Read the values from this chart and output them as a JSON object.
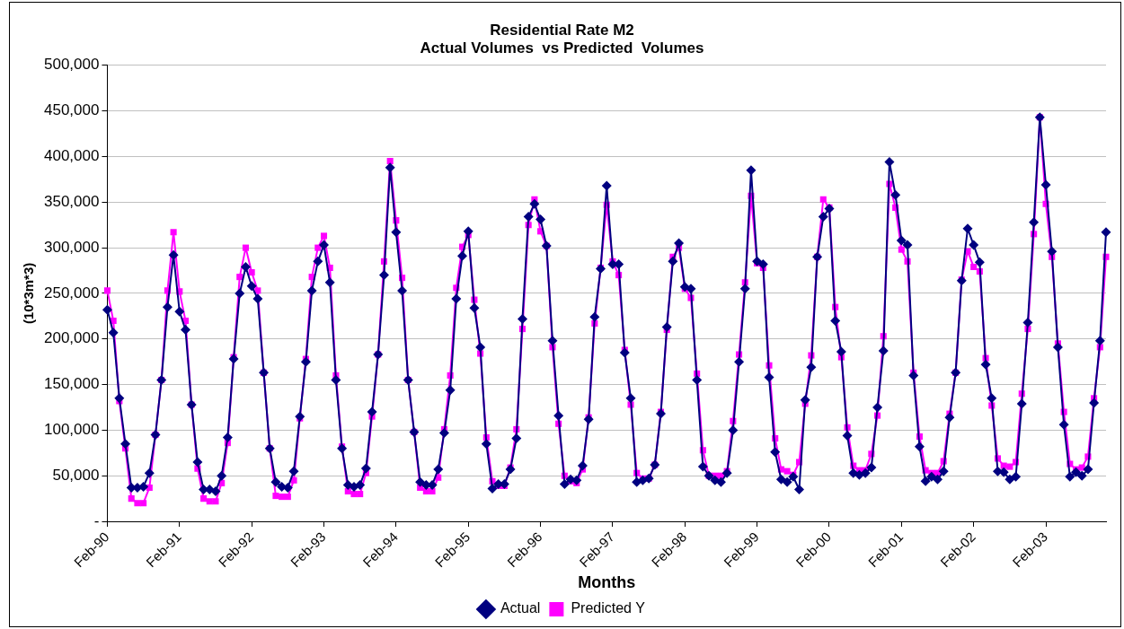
{
  "chart_data": {
    "type": "line",
    "title": "Residential Rate M2",
    "subtitle": "Actual Volumes  vs Predicted  Volumes",
    "xlabel": "Months",
    "ylabel": "(10*3m*3)",
    "categories": [
      "Feb-90",
      null,
      null,
      null,
      null,
      null,
      null,
      null,
      null,
      null,
      null,
      null,
      "Feb-91",
      null,
      null,
      null,
      null,
      null,
      null,
      null,
      null,
      null,
      null,
      null,
      "Feb-92",
      null,
      null,
      null,
      null,
      null,
      null,
      null,
      null,
      null,
      null,
      null,
      "Feb-93",
      null,
      null,
      null,
      null,
      null,
      null,
      null,
      null,
      null,
      null,
      null,
      "Feb-94",
      null,
      null,
      null,
      null,
      null,
      null,
      null,
      null,
      null,
      null,
      null,
      "Feb-95",
      null,
      null,
      null,
      null,
      null,
      null,
      null,
      null,
      null,
      null,
      null,
      "Feb-96",
      null,
      null,
      null,
      null,
      null,
      null,
      null,
      null,
      null,
      null,
      null,
      "Feb-97",
      null,
      null,
      null,
      null,
      null,
      null,
      null,
      null,
      null,
      null,
      null,
      "Feb-98",
      null,
      null,
      null,
      null,
      null,
      null,
      null,
      null,
      null,
      null,
      null,
      "Feb-99",
      null,
      null,
      null,
      null,
      null,
      null,
      null,
      null,
      null,
      null,
      null,
      "Feb-00",
      null,
      null,
      null,
      null,
      null,
      null,
      null,
      null,
      null,
      null,
      null,
      "Feb-01",
      null,
      null,
      null,
      null,
      null,
      null,
      null,
      null,
      null,
      null,
      null,
      "Feb-02",
      null,
      null,
      null,
      null,
      null,
      null,
      null,
      null,
      null,
      null,
      null,
      "Feb-03",
      null,
      null,
      null,
      null,
      null,
      null,
      null,
      null,
      null,
      null
    ],
    "series": [
      {
        "name": "Actual",
        "color": "#000080",
        "marker": "diamond",
        "values": [
          232000,
          207000,
          135000,
          85000,
          37000,
          37000,
          38000,
          53000,
          95000,
          155000,
          235000,
          292000,
          230000,
          210000,
          128000,
          65000,
          35000,
          35000,
          33000,
          50000,
          92000,
          178000,
          250000,
          279000,
          258000,
          244000,
          163000,
          80000,
          43000,
          38000,
          37000,
          55000,
          115000,
          175000,
          253000,
          285000,
          303000,
          262000,
          155000,
          80000,
          40000,
          38000,
          40000,
          58000,
          120000,
          183000,
          270000,
          388000,
          317000,
          253000,
          155000,
          98000,
          43000,
          40000,
          40000,
          57000,
          97000,
          144000,
          244000,
          291000,
          318000,
          234000,
          191000,
          85000,
          36000,
          41000,
          41000,
          57000,
          91000,
          222000,
          334000,
          348000,
          331000,
          302000,
          198000,
          116000,
          41000,
          46000,
          45000,
          61000,
          112000,
          224000,
          277000,
          368000,
          282000,
          282000,
          185000,
          135000,
          43000,
          45000,
          47000,
          62000,
          118000,
          213000,
          285000,
          305000,
          257000,
          255000,
          155000,
          60000,
          50000,
          45000,
          43000,
          53000,
          100000,
          175000,
          255000,
          385000,
          285000,
          282000,
          158000,
          76000,
          46000,
          43000,
          49000,
          35000,
          133000,
          169000,
          290000,
          334000,
          343000,
          220000,
          186000,
          94000,
          53000,
          51000,
          53000,
          59000,
          125000,
          187000,
          394000,
          358000,
          308000,
          303000,
          160000,
          82000,
          44000,
          49000,
          46000,
          55000,
          114000,
          163000,
          264000,
          321000,
          303000,
          284000,
          172000,
          135000,
          55000,
          54000,
          46000,
          49000,
          129000,
          218000,
          328000,
          443000,
          369000,
          296000,
          191000,
          106000,
          49000,
          54000,
          50000,
          57000,
          130000,
          198000,
          317000
        ]
      },
      {
        "name": "Predicted Y",
        "color": "#ff00ff",
        "marker": "square",
        "values": [
          253000,
          220000,
          132000,
          80000,
          25000,
          20000,
          20000,
          37000,
          95000,
          155000,
          253000,
          317000,
          252000,
          220000,
          128000,
          58000,
          25000,
          22000,
          22000,
          42000,
          86000,
          180000,
          268000,
          300000,
          273000,
          253000,
          163000,
          80000,
          28000,
          27000,
          27000,
          45000,
          113000,
          178000,
          268000,
          300000,
          313000,
          278000,
          160000,
          82000,
          33000,
          30000,
          30000,
          53000,
          115000,
          183000,
          285000,
          395000,
          330000,
          267000,
          155000,
          98000,
          37000,
          33000,
          33000,
          48000,
          101000,
          160000,
          256000,
          301000,
          314000,
          243000,
          184000,
          92000,
          44000,
          39000,
          39000,
          59000,
          101000,
          211000,
          325000,
          353000,
          318000,
          302000,
          191000,
          107000,
          50000,
          44000,
          42000,
          57000,
          114000,
          217000,
          278000,
          347000,
          285000,
          270000,
          188000,
          128000,
          53000,
          47000,
          47000,
          62000,
          120000,
          210000,
          290000,
          300000,
          255000,
          245000,
          162000,
          78000,
          50000,
          50000,
          50000,
          55000,
          110000,
          183000,
          262000,
          357000,
          283000,
          278000,
          171000,
          91000,
          57000,
          55000,
          51000,
          65000,
          129000,
          182000,
          290000,
          353000,
          344000,
          235000,
          180000,
          103000,
          61000,
          56000,
          56000,
          74000,
          116000,
          203000,
          370000,
          344000,
          298000,
          285000,
          163000,
          93000,
          56000,
          53000,
          53000,
          66000,
          118000,
          163000,
          265000,
          296000,
          279000,
          274000,
          179000,
          127000,
          69000,
          61000,
          60000,
          65000,
          140000,
          211000,
          315000,
          443000,
          348000,
          290000,
          195000,
          120000,
          63000,
          57000,
          59000,
          71000,
          135000,
          191000,
          290000
        ]
      }
    ],
    "ylim": [
      0,
      500000
    ],
    "yticks": [
      {
        "value": 0,
        "label": "-"
      },
      {
        "value": 50000,
        "label": "50,000"
      },
      {
        "value": 100000,
        "label": "100,000"
      },
      {
        "value": 150000,
        "label": "150,000"
      },
      {
        "value": 200000,
        "label": "200,000"
      },
      {
        "value": 250000,
        "label": "250,000"
      },
      {
        "value": 300000,
        "label": "300,000"
      },
      {
        "value": 350000,
        "label": "350,000"
      },
      {
        "value": 400000,
        "label": "400,000"
      },
      {
        "value": 450000,
        "label": "450,000"
      },
      {
        "value": 500000,
        "label": "500,000"
      }
    ],
    "grid": "y",
    "legend": "bottom",
    "line_style": "solid"
  }
}
